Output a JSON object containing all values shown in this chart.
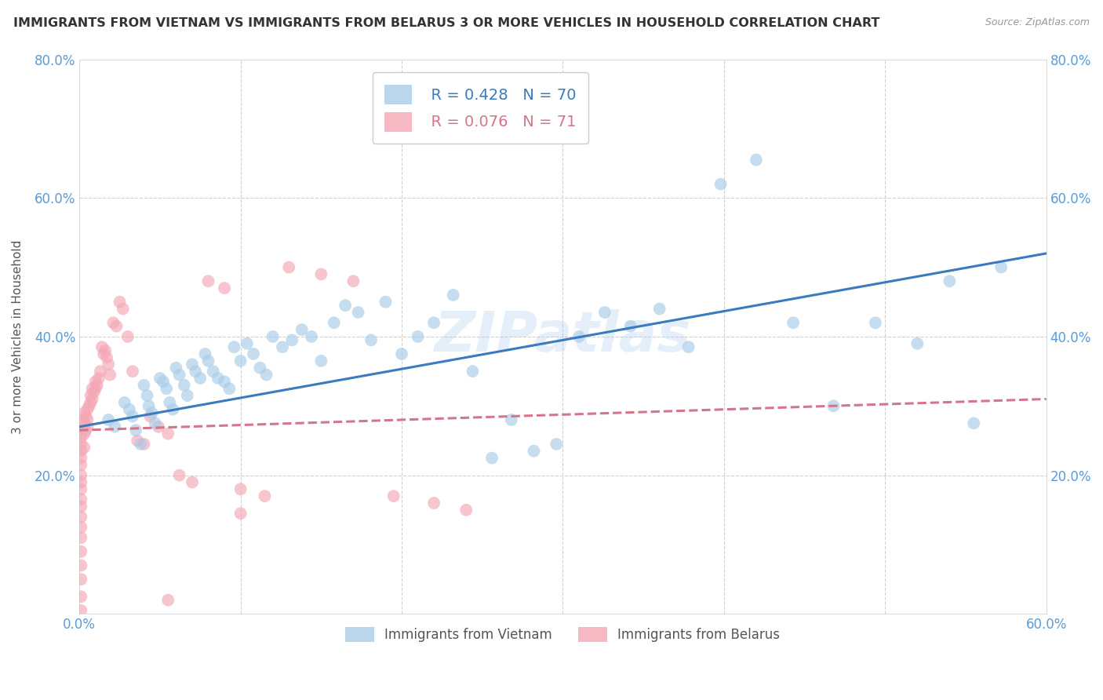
{
  "title": "IMMIGRANTS FROM VIETNAM VS IMMIGRANTS FROM BELARUS 3 OR MORE VEHICLES IN HOUSEHOLD CORRELATION CHART",
  "source": "Source: ZipAtlas.com",
  "ylabel": "3 or more Vehicles in Household",
  "xlim": [
    0.0,
    0.6
  ],
  "ylim": [
    0.0,
    0.8
  ],
  "xticks": [
    0.0,
    0.1,
    0.2,
    0.3,
    0.4,
    0.5,
    0.6
  ],
  "yticks": [
    0.0,
    0.2,
    0.4,
    0.6,
    0.8
  ],
  "xticklabels": [
    "0.0%",
    "",
    "",
    "",
    "",
    "",
    "60.0%"
  ],
  "yticklabels": [
    "",
    "20.0%",
    "40.0%",
    "60.0%",
    "80.0%"
  ],
  "legend_r1": "R = 0.428",
  "legend_n1": "N = 70",
  "legend_r2": "R = 0.076",
  "legend_n2": "N = 71",
  "legend_label1": "Immigrants from Vietnam",
  "legend_label2": "Immigrants from Belarus",
  "color_vietnam": "#a8cce8",
  "color_belarus": "#f4a7b5",
  "color_trendline_vietnam": "#3a7bbf",
  "color_trendline_belarus": "#d4758a",
  "watermark": "ZIPatlas",
  "axis_color": "#5b9bd5",
  "grid_color": "#cccccc",
  "vietnam_x": [
    0.018,
    0.022,
    0.028,
    0.031,
    0.033,
    0.035,
    0.038,
    0.04,
    0.042,
    0.043,
    0.045,
    0.047,
    0.05,
    0.052,
    0.054,
    0.056,
    0.058,
    0.06,
    0.062,
    0.065,
    0.067,
    0.07,
    0.072,
    0.075,
    0.078,
    0.08,
    0.083,
    0.086,
    0.09,
    0.093,
    0.096,
    0.1,
    0.104,
    0.108,
    0.112,
    0.116,
    0.12,
    0.126,
    0.132,
    0.138,
    0.144,
    0.15,
    0.158,
    0.165,
    0.173,
    0.181,
    0.19,
    0.2,
    0.21,
    0.22,
    0.232,
    0.244,
    0.256,
    0.268,
    0.282,
    0.296,
    0.31,
    0.326,
    0.342,
    0.36,
    0.378,
    0.398,
    0.42,
    0.443,
    0.468,
    0.494,
    0.52,
    0.54,
    0.555,
    0.572
  ],
  "vietnam_y": [
    0.28,
    0.27,
    0.305,
    0.295,
    0.285,
    0.265,
    0.245,
    0.33,
    0.315,
    0.3,
    0.29,
    0.275,
    0.34,
    0.335,
    0.325,
    0.305,
    0.295,
    0.355,
    0.345,
    0.33,
    0.315,
    0.36,
    0.35,
    0.34,
    0.375,
    0.365,
    0.35,
    0.34,
    0.335,
    0.325,
    0.385,
    0.365,
    0.39,
    0.375,
    0.355,
    0.345,
    0.4,
    0.385,
    0.395,
    0.41,
    0.4,
    0.365,
    0.42,
    0.445,
    0.435,
    0.395,
    0.45,
    0.375,
    0.4,
    0.42,
    0.46,
    0.35,
    0.225,
    0.28,
    0.235,
    0.245,
    0.4,
    0.435,
    0.415,
    0.44,
    0.385,
    0.62,
    0.655,
    0.42,
    0.3,
    0.42,
    0.39,
    0.48,
    0.275,
    0.5
  ],
  "belarus_x": [
    0.001,
    0.001,
    0.001,
    0.001,
    0.001,
    0.001,
    0.001,
    0.001,
    0.001,
    0.001,
    0.001,
    0.001,
    0.001,
    0.001,
    0.001,
    0.001,
    0.001,
    0.001,
    0.001,
    0.002,
    0.003,
    0.003,
    0.003,
    0.003,
    0.004,
    0.004,
    0.005,
    0.005,
    0.005,
    0.006,
    0.007,
    0.007,
    0.008,
    0.008,
    0.009,
    0.01,
    0.01,
    0.011,
    0.012,
    0.013,
    0.014,
    0.015,
    0.016,
    0.017,
    0.018,
    0.019,
    0.021,
    0.023,
    0.025,
    0.027,
    0.03,
    0.033,
    0.036,
    0.04,
    0.044,
    0.049,
    0.055,
    0.062,
    0.07,
    0.08,
    0.09,
    0.1,
    0.115,
    0.13,
    0.15,
    0.17,
    0.195,
    0.22,
    0.24,
    0.1,
    0.055
  ],
  "belarus_y": [
    0.265,
    0.255,
    0.245,
    0.235,
    0.225,
    0.215,
    0.2,
    0.19,
    0.18,
    0.165,
    0.155,
    0.14,
    0.125,
    0.11,
    0.09,
    0.07,
    0.05,
    0.025,
    0.005,
    0.28,
    0.29,
    0.275,
    0.26,
    0.24,
    0.285,
    0.265,
    0.295,
    0.28,
    0.27,
    0.3,
    0.315,
    0.305,
    0.325,
    0.31,
    0.32,
    0.335,
    0.325,
    0.33,
    0.34,
    0.35,
    0.385,
    0.375,
    0.38,
    0.37,
    0.36,
    0.345,
    0.42,
    0.415,
    0.45,
    0.44,
    0.4,
    0.35,
    0.25,
    0.245,
    0.285,
    0.27,
    0.26,
    0.2,
    0.19,
    0.48,
    0.47,
    0.18,
    0.17,
    0.5,
    0.49,
    0.48,
    0.17,
    0.16,
    0.15,
    0.145,
    0.02
  ],
  "viet_trend_x0": 0.0,
  "viet_trend_x1": 0.6,
  "viet_trend_y0": 0.27,
  "viet_trend_y1": 0.52,
  "bel_trend_x0": 0.0,
  "bel_trend_x1": 0.6,
  "bel_trend_y0": 0.265,
  "bel_trend_y1": 0.31
}
